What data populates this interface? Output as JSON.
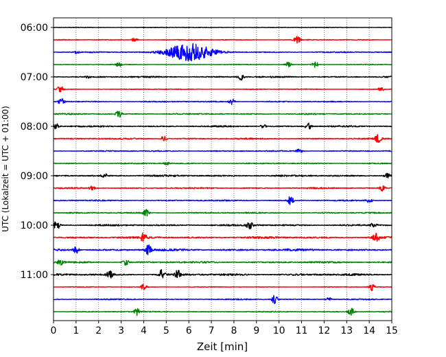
{
  "chart_data": {
    "type": "line",
    "title": "",
    "xlabel": "Zeit  [min]",
    "ylabel": "UTC (Lokalzeit = UTC + 01:00)",
    "xlim": [
      0,
      15
    ],
    "x_ticks": [
      0,
      1,
      2,
      3,
      4,
      5,
      6,
      7,
      8,
      9,
      10,
      11,
      12,
      13,
      14,
      15
    ],
    "x_tick_labels": [
      "0",
      "1",
      "2",
      "3",
      "4",
      "5",
      "6",
      "7",
      "8",
      "9",
      "10",
      "11",
      "12",
      "13",
      "14",
      "15"
    ],
    "y_tick_labels": [
      {
        "label": "06:00",
        "trace_index": 0
      },
      {
        "label": "07:00",
        "trace_index": 4
      },
      {
        "label": "08:00",
        "trace_index": 8
      },
      {
        "label": "09:00",
        "trace_index": 12
      },
      {
        "label": "10:00",
        "trace_index": 16
      },
      {
        "label": "11:00",
        "trace_index": 20
      }
    ],
    "vertical_grid": true,
    "trace_color_cycle": [
      "#000000",
      "#ff0000",
      "#0000ff",
      "#008000"
    ],
    "traces": [
      {
        "start": "06:00",
        "color": "#000000",
        "amplitude": 0.04,
        "events": []
      },
      {
        "start": "06:15",
        "color": "#ff0000",
        "amplitude": 0.06,
        "events": [
          {
            "t": 3.6,
            "amp": 0.4
          },
          {
            "t": 10.8,
            "amp": 0.8
          }
        ]
      },
      {
        "start": "06:30",
        "color": "#0000ff",
        "amplitude": 0.08,
        "events": [
          {
            "t": 6.0,
            "amp": 1.8,
            "width": 1.4
          },
          {
            "t": 1.0,
            "amp": 0.2
          }
        ]
      },
      {
        "start": "06:45",
        "color": "#008000",
        "amplitude": 0.05,
        "events": [
          {
            "t": 2.9,
            "amp": 0.45
          },
          {
            "t": 10.4,
            "amp": 0.5
          },
          {
            "t": 11.6,
            "amp": 0.7
          }
        ]
      },
      {
        "start": "07:00",
        "color": "#000000",
        "amplitude": 0.1,
        "events": [
          {
            "t": 8.3,
            "amp": 0.7
          },
          {
            "t": 1.5,
            "amp": 0.3
          }
        ]
      },
      {
        "start": "07:15",
        "color": "#ff0000",
        "amplitude": 0.06,
        "events": [
          {
            "t": 0.3,
            "amp": 0.7
          },
          {
            "t": 14.5,
            "amp": 0.45
          }
        ]
      },
      {
        "start": "07:30",
        "color": "#0000ff",
        "amplitude": 0.08,
        "events": [
          {
            "t": 0.35,
            "amp": 0.7
          },
          {
            "t": 7.9,
            "amp": 0.6
          }
        ]
      },
      {
        "start": "07:45",
        "color": "#008000",
        "amplitude": 0.09,
        "events": [
          {
            "t": 2.9,
            "amp": 0.7
          }
        ]
      },
      {
        "start": "08:00",
        "color": "#000000",
        "amplitude": 0.1,
        "events": [
          {
            "t": 0.1,
            "amp": 0.6
          },
          {
            "t": 11.3,
            "amp": 1.0
          },
          {
            "t": 9.3,
            "amp": 0.4
          }
        ]
      },
      {
        "start": "08:15",
        "color": "#ff0000",
        "amplitude": 0.1,
        "events": [
          {
            "t": 4.9,
            "amp": 0.6
          },
          {
            "t": 14.4,
            "amp": 0.8
          }
        ]
      },
      {
        "start": "08:30",
        "color": "#0000ff",
        "amplitude": 0.08,
        "events": [
          {
            "t": 10.9,
            "amp": 0.4
          }
        ]
      },
      {
        "start": "08:45",
        "color": "#008000",
        "amplitude": 0.08,
        "events": [
          {
            "t": 5.0,
            "amp": 0.3
          }
        ]
      },
      {
        "start": "09:00",
        "color": "#000000",
        "amplitude": 0.12,
        "events": [
          {
            "t": 2.3,
            "amp": 0.4
          },
          {
            "t": 14.8,
            "amp": 0.5
          }
        ]
      },
      {
        "start": "09:15",
        "color": "#ff0000",
        "amplitude": 0.1,
        "events": [
          {
            "t": 1.7,
            "amp": 0.4
          },
          {
            "t": 14.6,
            "amp": 0.6
          }
        ]
      },
      {
        "start": "09:30",
        "color": "#0000ff",
        "amplitude": 0.09,
        "events": [
          {
            "t": 10.5,
            "amp": 0.9
          },
          {
            "t": 14.0,
            "amp": 0.5
          }
        ]
      },
      {
        "start": "09:45",
        "color": "#008000",
        "amplitude": 0.09,
        "events": [
          {
            "t": 4.1,
            "amp": 0.7
          }
        ]
      },
      {
        "start": "10:00",
        "color": "#000000",
        "amplitude": 0.12,
        "events": [
          {
            "t": 0.15,
            "amp": 0.9
          },
          {
            "t": 8.7,
            "amp": 0.8
          },
          {
            "t": 14.2,
            "amp": 0.6
          }
        ]
      },
      {
        "start": "10:15",
        "color": "#ff0000",
        "amplitude": 0.14,
        "events": [
          {
            "t": 4.0,
            "amp": 0.9
          },
          {
            "t": 14.3,
            "amp": 0.9
          }
        ]
      },
      {
        "start": "10:30",
        "color": "#0000ff",
        "amplitude": 0.15,
        "events": [
          {
            "t": 4.2,
            "amp": 1.0
          },
          {
            "t": 1.0,
            "amp": 0.7
          }
        ]
      },
      {
        "start": "10:45",
        "color": "#008000",
        "amplitude": 0.12,
        "events": [
          {
            "t": 0.3,
            "amp": 0.5
          },
          {
            "t": 3.2,
            "amp": 0.6
          }
        ]
      },
      {
        "start": "11:00",
        "color": "#000000",
        "amplitude": 0.14,
        "events": [
          {
            "t": 4.8,
            "amp": 1.0
          },
          {
            "t": 2.5,
            "amp": 0.8
          },
          {
            "t": 5.5,
            "amp": 0.9
          }
        ]
      },
      {
        "start": "11:15",
        "color": "#ff0000",
        "amplitude": 0.05,
        "events": [
          {
            "t": 4.0,
            "amp": 0.6
          },
          {
            "t": 14.1,
            "amp": 0.8
          }
        ]
      },
      {
        "start": "11:30",
        "color": "#0000ff",
        "amplitude": 0.08,
        "events": [
          {
            "t": 9.8,
            "amp": 0.9
          },
          {
            "t": 12.2,
            "amp": 0.4
          }
        ]
      },
      {
        "start": "11:45",
        "color": "#008000",
        "amplitude": 0.07,
        "events": [
          {
            "t": 3.7,
            "amp": 0.7
          },
          {
            "t": 13.2,
            "amp": 0.8
          }
        ]
      }
    ]
  }
}
